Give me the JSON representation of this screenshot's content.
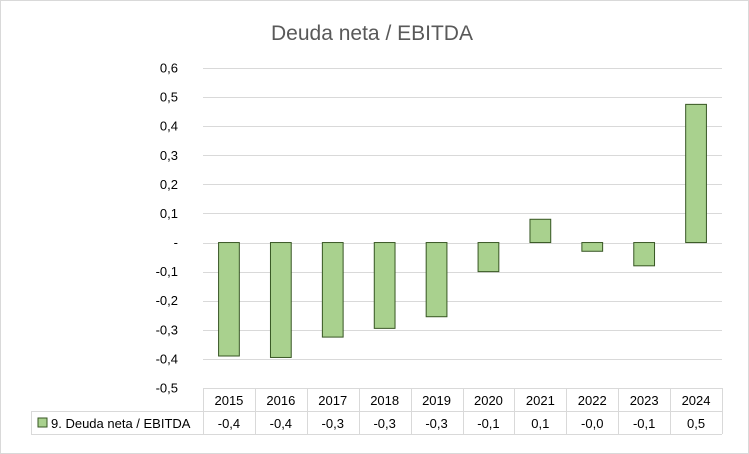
{
  "chart_data": {
    "type": "bar",
    "title": "Deuda neta / EBITDA",
    "categories": [
      "2015",
      "2016",
      "2017",
      "2018",
      "2019",
      "2020",
      "2021",
      "2022",
      "2023",
      "2024"
    ],
    "series": [
      {
        "name": "9. Deuda neta / EBITDA",
        "values": [
          -0.39,
          -0.395,
          -0.325,
          -0.295,
          -0.255,
          -0.1,
          0.08,
          -0.03,
          -0.08,
          0.475
        ],
        "labels": [
          "-0,4",
          "-0,4",
          "-0,3",
          "-0,3",
          "-0,3",
          "-0,1",
          "0,1",
          "-0,0",
          "-0,1",
          "0,5"
        ],
        "color": "#a9d18e",
        "stroke": "#375623"
      }
    ],
    "ylim": [
      -0.5,
      0.6
    ],
    "yticks": [
      0.6,
      0.5,
      0.4,
      0.3,
      0.2,
      0.1,
      0,
      -0.1,
      -0.2,
      -0.3,
      -0.4,
      -0.5
    ],
    "ytick_labels": [
      "0,6",
      "0,5",
      "0,4",
      "0,3",
      "0,2",
      "0,1",
      "-",
      "-0,1",
      "-0,2",
      "-0,3",
      "-0,4",
      "-0,5"
    ],
    "grid": true,
    "legend": "data-table",
    "grid_color": "#d9d9d9",
    "border_color": "#d9d9d9"
  }
}
